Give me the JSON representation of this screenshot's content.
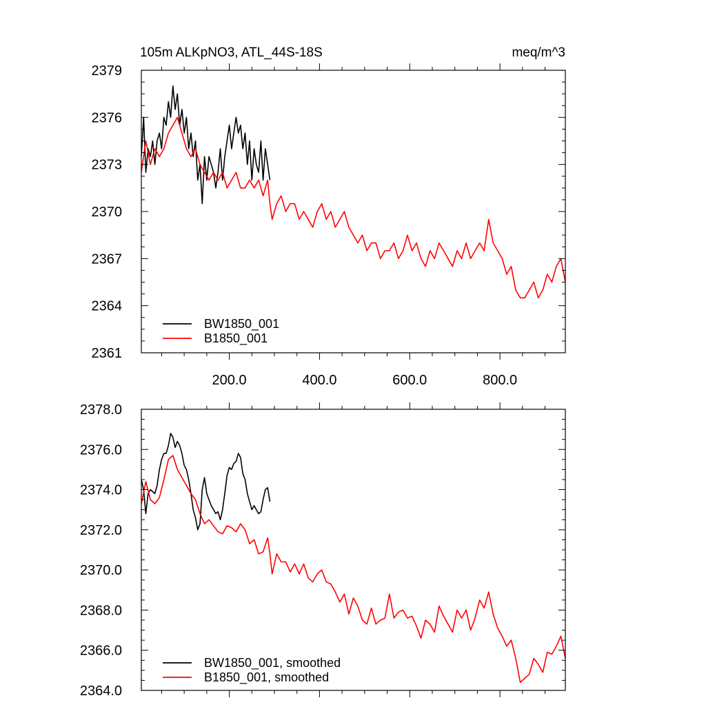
{
  "chart_data": [
    {
      "type": "line",
      "title": "105m ALKpNO3, ATL_44S-18S",
      "units": "meq/m^3",
      "xlim": [
        5,
        945
      ],
      "ylim": [
        2361,
        2379
      ],
      "yticks": [
        2361,
        2364,
        2367,
        2370,
        2373,
        2376,
        2379
      ],
      "ytick_labels": [
        "2361",
        "2364",
        "2367",
        "2370",
        "2373",
        "2376",
        "2379"
      ],
      "xticks": [
        200,
        400,
        600,
        800
      ],
      "xtick_labels": [
        "200.0",
        "400.0",
        "600.0",
        "800.0"
      ],
      "grid": false,
      "legend_position": "bottom-left",
      "series": [
        {
          "name": "BW1850_001",
          "color": "#000000",
          "x": [
            5,
            10,
            15,
            20,
            25,
            30,
            35,
            40,
            45,
            50,
            55,
            60,
            65,
            70,
            75,
            80,
            85,
            90,
            95,
            100,
            105,
            110,
            115,
            120,
            125,
            130,
            135,
            140,
            145,
            150,
            155,
            160,
            165,
            170,
            175,
            180,
            185,
            190,
            195,
            200,
            205,
            210,
            215,
            220,
            225,
            230,
            235,
            240,
            245,
            250,
            255,
            260,
            265,
            270,
            275,
            280,
            285,
            290
          ],
          "values": [
            2373.5,
            2376.0,
            2372.5,
            2374.0,
            2373.5,
            2374.5,
            2373.0,
            2374.5,
            2375.0,
            2374.0,
            2376.0,
            2375.5,
            2377.0,
            2376.0,
            2378.0,
            2376.5,
            2377.5,
            2375.5,
            2376.5,
            2375.0,
            2376.0,
            2374.0,
            2375.0,
            2373.5,
            2374.5,
            2372.0,
            2373.0,
            2370.5,
            2373.5,
            2372.0,
            2373.5,
            2373.0,
            2372.5,
            2371.5,
            2372.5,
            2374.0,
            2372.0,
            2373.5,
            2374.5,
            2375.5,
            2374.0,
            2375.0,
            2376.0,
            2375.0,
            2375.5,
            2374.0,
            2375.0,
            2373.0,
            2374.5,
            2372.0,
            2374.0,
            2373.0,
            2372.5,
            2374.5,
            2372.0,
            2374.0,
            2373.0,
            2372.0
          ]
        },
        {
          "name": "B1850_001",
          "color": "#ff0000",
          "x": [
            5,
            15,
            25,
            35,
            45,
            55,
            65,
            75,
            85,
            95,
            105,
            115,
            125,
            135,
            145,
            155,
            165,
            175,
            185,
            195,
            205,
            215,
            225,
            235,
            245,
            255,
            265,
            275,
            285,
            290,
            295,
            305,
            315,
            325,
            335,
            345,
            355,
            365,
            375,
            385,
            395,
            405,
            415,
            425,
            435,
            445,
            455,
            465,
            475,
            485,
            495,
            505,
            515,
            525,
            535,
            545,
            555,
            565,
            575,
            585,
            595,
            605,
            615,
            625,
            635,
            645,
            655,
            665,
            675,
            685,
            695,
            705,
            715,
            725,
            735,
            745,
            755,
            765,
            775,
            785,
            795,
            805,
            815,
            825,
            835,
            845,
            855,
            865,
            875,
            885,
            895,
            905,
            915,
            925,
            935,
            945
          ],
          "values": [
            2372.5,
            2374.5,
            2373.0,
            2374.0,
            2373.5,
            2374.0,
            2375.0,
            2375.5,
            2376.0,
            2375.0,
            2374.0,
            2373.5,
            2374.0,
            2373.0,
            2372.5,
            2372.0,
            2372.5,
            2372.0,
            2372.5,
            2371.5,
            2372.0,
            2372.5,
            2371.5,
            2371.5,
            2372.0,
            2371.5,
            2372.0,
            2371.0,
            2372.0,
            2370.5,
            2369.5,
            2370.5,
            2371.0,
            2370.0,
            2370.5,
            2370.5,
            2369.5,
            2370.0,
            2369.5,
            2369.0,
            2370.0,
            2370.5,
            2369.5,
            2370.0,
            2369.0,
            2369.5,
            2370.0,
            2369.0,
            2368.5,
            2368.0,
            2368.5,
            2367.5,
            2368.0,
            2368.0,
            2367.0,
            2367.5,
            2367.5,
            2368.0,
            2367.0,
            2367.5,
            2368.5,
            2367.5,
            2368.0,
            2367.0,
            2366.5,
            2367.5,
            2367.0,
            2368.0,
            2367.5,
            2367.0,
            2366.5,
            2367.5,
            2367.0,
            2368.0,
            2367.0,
            2367.5,
            2368.0,
            2367.5,
            2369.5,
            2368.0,
            2367.5,
            2367.0,
            2366.0,
            2366.5,
            2365.0,
            2364.5,
            2364.5,
            2365.0,
            2365.5,
            2364.5,
            2365.0,
            2366.0,
            2365.5,
            2366.5,
            2367.0,
            2365.5
          ]
        }
      ]
    },
    {
      "type": "line",
      "xlim": [
        5,
        945
      ],
      "ylim": [
        2364.0,
        2378.0
      ],
      "yticks": [
        2364,
        2366,
        2368,
        2370,
        2372,
        2374,
        2376,
        2378
      ],
      "ytick_labels": [
        "2364.0",
        "2366.0",
        "2368.0",
        "2370.0",
        "2372.0",
        "2374.0",
        "2376.0",
        "2378.0"
      ],
      "xticks": [
        200,
        400,
        600,
        800
      ],
      "xtick_labels": [],
      "grid": false,
      "legend_position": "bottom-left",
      "series": [
        {
          "name": "BW1850_001, smoothed",
          "color": "#000000",
          "x": [
            5,
            10,
            15,
            20,
            25,
            30,
            35,
            40,
            45,
            50,
            55,
            60,
            65,
            70,
            75,
            80,
            85,
            90,
            95,
            100,
            105,
            110,
            115,
            120,
            125,
            130,
            135,
            140,
            145,
            150,
            155,
            160,
            165,
            170,
            175,
            180,
            185,
            190,
            195,
            200,
            205,
            210,
            215,
            220,
            225,
            230,
            235,
            240,
            245,
            250,
            255,
            260,
            265,
            270,
            275,
            280,
            285,
            290
          ],
          "values": [
            2374.5,
            2374.0,
            2372.8,
            2373.8,
            2374.0,
            2373.9,
            2373.8,
            2374.2,
            2375.0,
            2375.5,
            2375.8,
            2375.8,
            2376.2,
            2376.8,
            2376.6,
            2376.1,
            2376.4,
            2376.2,
            2375.8,
            2375.2,
            2375.0,
            2374.5,
            2373.8,
            2373.0,
            2372.6,
            2372.0,
            2372.3,
            2374.0,
            2374.6,
            2373.8,
            2373.5,
            2373.2,
            2373.0,
            2372.8,
            2372.9,
            2372.5,
            2373.0,
            2373.8,
            2374.7,
            2375.1,
            2375.0,
            2375.3,
            2375.4,
            2375.8,
            2375.6,
            2374.8,
            2374.5,
            2373.8,
            2373.4,
            2373.0,
            2373.2,
            2373.0,
            2372.8,
            2372.9,
            2373.5,
            2374.0,
            2374.1,
            2373.4
          ]
        },
        {
          "name": "B1850_001, smoothed",
          "color": "#ff0000",
          "x": [
            5,
            15,
            25,
            35,
            45,
            55,
            65,
            75,
            85,
            95,
            105,
            115,
            125,
            135,
            145,
            155,
            165,
            175,
            185,
            195,
            205,
            215,
            225,
            235,
            245,
            255,
            265,
            275,
            285,
            290,
            295,
            305,
            315,
            325,
            335,
            345,
            355,
            365,
            375,
            385,
            395,
            405,
            415,
            425,
            435,
            445,
            455,
            465,
            475,
            485,
            495,
            505,
            515,
            525,
            535,
            545,
            555,
            565,
            575,
            585,
            595,
            605,
            615,
            625,
            635,
            645,
            655,
            665,
            675,
            685,
            695,
            705,
            715,
            725,
            735,
            745,
            755,
            765,
            775,
            785,
            795,
            805,
            815,
            825,
            835,
            845,
            855,
            865,
            875,
            885,
            895,
            905,
            915,
            925,
            935,
            945
          ],
          "values": [
            2373.3,
            2374.4,
            2373.5,
            2373.3,
            2373.6,
            2374.5,
            2375.5,
            2375.7,
            2375.0,
            2374.6,
            2374.2,
            2373.8,
            2373.5,
            2372.8,
            2372.3,
            2372.5,
            2372.2,
            2371.9,
            2371.8,
            2372.2,
            2372.1,
            2371.9,
            2372.3,
            2372.0,
            2371.3,
            2371.5,
            2370.8,
            2370.9,
            2371.6,
            2370.8,
            2369.8,
            2370.8,
            2370.4,
            2370.4,
            2369.9,
            2370.3,
            2369.8,
            2370.3,
            2369.6,
            2369.4,
            2369.8,
            2370.0,
            2369.4,
            2369.3,
            2368.9,
            2368.4,
            2368.8,
            2367.8,
            2368.6,
            2368.2,
            2367.5,
            2367.3,
            2368.1,
            2367.3,
            2367.5,
            2367.6,
            2368.8,
            2367.6,
            2367.9,
            2368.0,
            2367.6,
            2367.7,
            2367.2,
            2366.6,
            2367.5,
            2367.3,
            2366.9,
            2368.2,
            2367.7,
            2367.3,
            2366.9,
            2368.0,
            2367.6,
            2368.0,
            2367.0,
            2367.6,
            2368.5,
            2368.1,
            2368.9,
            2367.8,
            2367.1,
            2366.7,
            2366.2,
            2366.5,
            2365.6,
            2364.4,
            2364.6,
            2364.8,
            2365.6,
            2365.3,
            2364.9,
            2365.9,
            2365.8,
            2366.2,
            2366.7,
            2365.6
          ]
        }
      ]
    }
  ]
}
